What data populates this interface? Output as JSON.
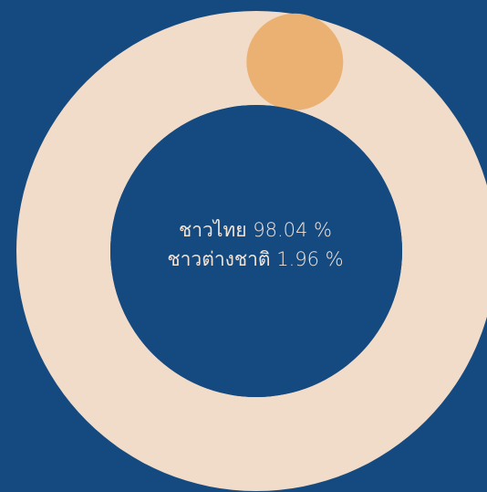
{
  "colors": {
    "background": "#154a80",
    "thai": "#f1dbc9",
    "foreign": "#ebb173",
    "text": "#f3e4d8"
  },
  "chart_data": {
    "type": "pie",
    "style": "donut",
    "categories": [
      "ชาวไทย",
      "ชาวต่างชาติ"
    ],
    "values": [
      98.04,
      1.96
    ],
    "unit": "%",
    "labels": [
      "ชาวไทย 98.04 %",
      "ชาวต่างชาติ 1.96 %"
    ]
  }
}
